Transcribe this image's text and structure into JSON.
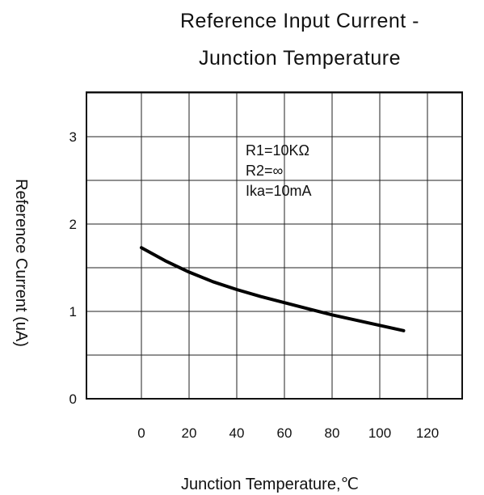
{
  "chart_data": {
    "type": "line",
    "title_lines": [
      "Reference  Input  Current  -",
      "Junction  Temperature"
    ],
    "xlabel": "Junction  Temperature,℃",
    "ylabel": "Reference  Current  (uA)",
    "x_ticks": [
      "0",
      "20",
      "40",
      "60",
      "80",
      "100",
      "120"
    ],
    "y_ticks": [
      "0",
      "1",
      "2",
      "3"
    ],
    "annotations": [
      "R1=10KΩ",
      "R2=∞",
      "Ika=10mA"
    ],
    "grid": true,
    "series": [
      {
        "x": [
          0,
          10,
          20,
          30,
          40,
          50,
          60,
          70,
          80,
          90,
          100,
          110
        ],
        "y": [
          1.73,
          1.58,
          1.45,
          1.34,
          1.25,
          1.17,
          1.1,
          1.03,
          0.96,
          0.9,
          0.84,
          0.78
        ]
      }
    ]
  }
}
